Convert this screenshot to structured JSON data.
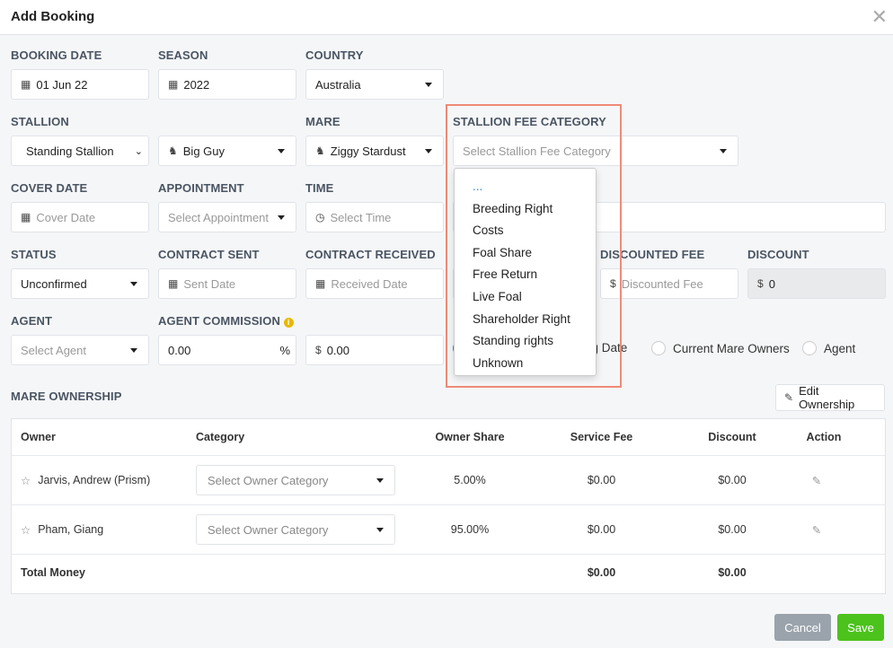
{
  "title": "Add Booking",
  "fields": {
    "booking_date": {
      "label": "BOOKING DATE",
      "value": "01 Jun 22"
    },
    "season": {
      "label": "SEASON",
      "value": "2022"
    },
    "country": {
      "label": "COUNTRY",
      "value": "Australia"
    },
    "stallion": {
      "label": "STALLION",
      "type_value": "Standing Stallion",
      "value": "Big Guy"
    },
    "mare": {
      "label": "MARE",
      "value": "Ziggy Stardust"
    },
    "stallion_fee_category": {
      "label": "STALLION FEE CATEGORY",
      "placeholder": "Select Stallion Fee Category"
    },
    "cover_date": {
      "label": "COVER DATE",
      "placeholder": "Cover Date"
    },
    "appointment": {
      "label": "APPOINTMENT",
      "placeholder": "Select Appointment"
    },
    "time": {
      "label": "TIME",
      "placeholder": "Select Time"
    },
    "status": {
      "label": "STATUS",
      "value": "Unconfirmed"
    },
    "contract_sent": {
      "label": "CONTRACT SENT",
      "placeholder": "Sent Date"
    },
    "contract_received": {
      "label": "CONTRACT RECEIVED",
      "placeholder": "Received Date"
    },
    "discounted_fee": {
      "label": "DISCOUNTED FEE",
      "prefix": "$",
      "placeholder": "Discounted Fee"
    },
    "discount": {
      "label": "DISCOUNT",
      "prefix": "$",
      "value": "0"
    },
    "agent": {
      "label": "AGENT",
      "placeholder": "Select Agent"
    },
    "agent_commission": {
      "label": "AGENT COMMISSION",
      "percent": "0.00",
      "percent_suffix": "%",
      "amount_prefix": "$",
      "amount": "0.00"
    }
  },
  "radios": [
    "ng Date",
    "Current Mare Owners",
    "Agent"
  ],
  "dropdown_options": [
    "...",
    "Breeding Right",
    "Costs",
    "Foal Share",
    "Free Return",
    "Live Foal",
    "Shareholder Right",
    "Standing rights",
    "Unknown"
  ],
  "ownership": {
    "title": "MARE OWNERSHIP",
    "edit_label": "Edit Ownership",
    "columns": [
      "Owner",
      "Category",
      "Owner Share",
      "Service Fee",
      "Discount",
      "Action"
    ],
    "rows": [
      {
        "owner": "Jarvis, Andrew (Prism)",
        "category_placeholder": "Select Owner Category",
        "share": "5.00%",
        "fee": "$0.00",
        "discount": "$0.00"
      },
      {
        "owner": "Pham, Giang",
        "category_placeholder": "Select Owner Category",
        "share": "95.00%",
        "fee": "$0.00",
        "discount": "$0.00"
      }
    ],
    "total": {
      "label": "Total Money",
      "fee": "$0.00",
      "discount": "$0.00"
    }
  },
  "buttons": {
    "cancel": "Cancel",
    "save": "Save"
  },
  "colors": {
    "cancel": "#9aa3ab",
    "save": "#4cc21c",
    "highlight": "#ef8a78"
  }
}
